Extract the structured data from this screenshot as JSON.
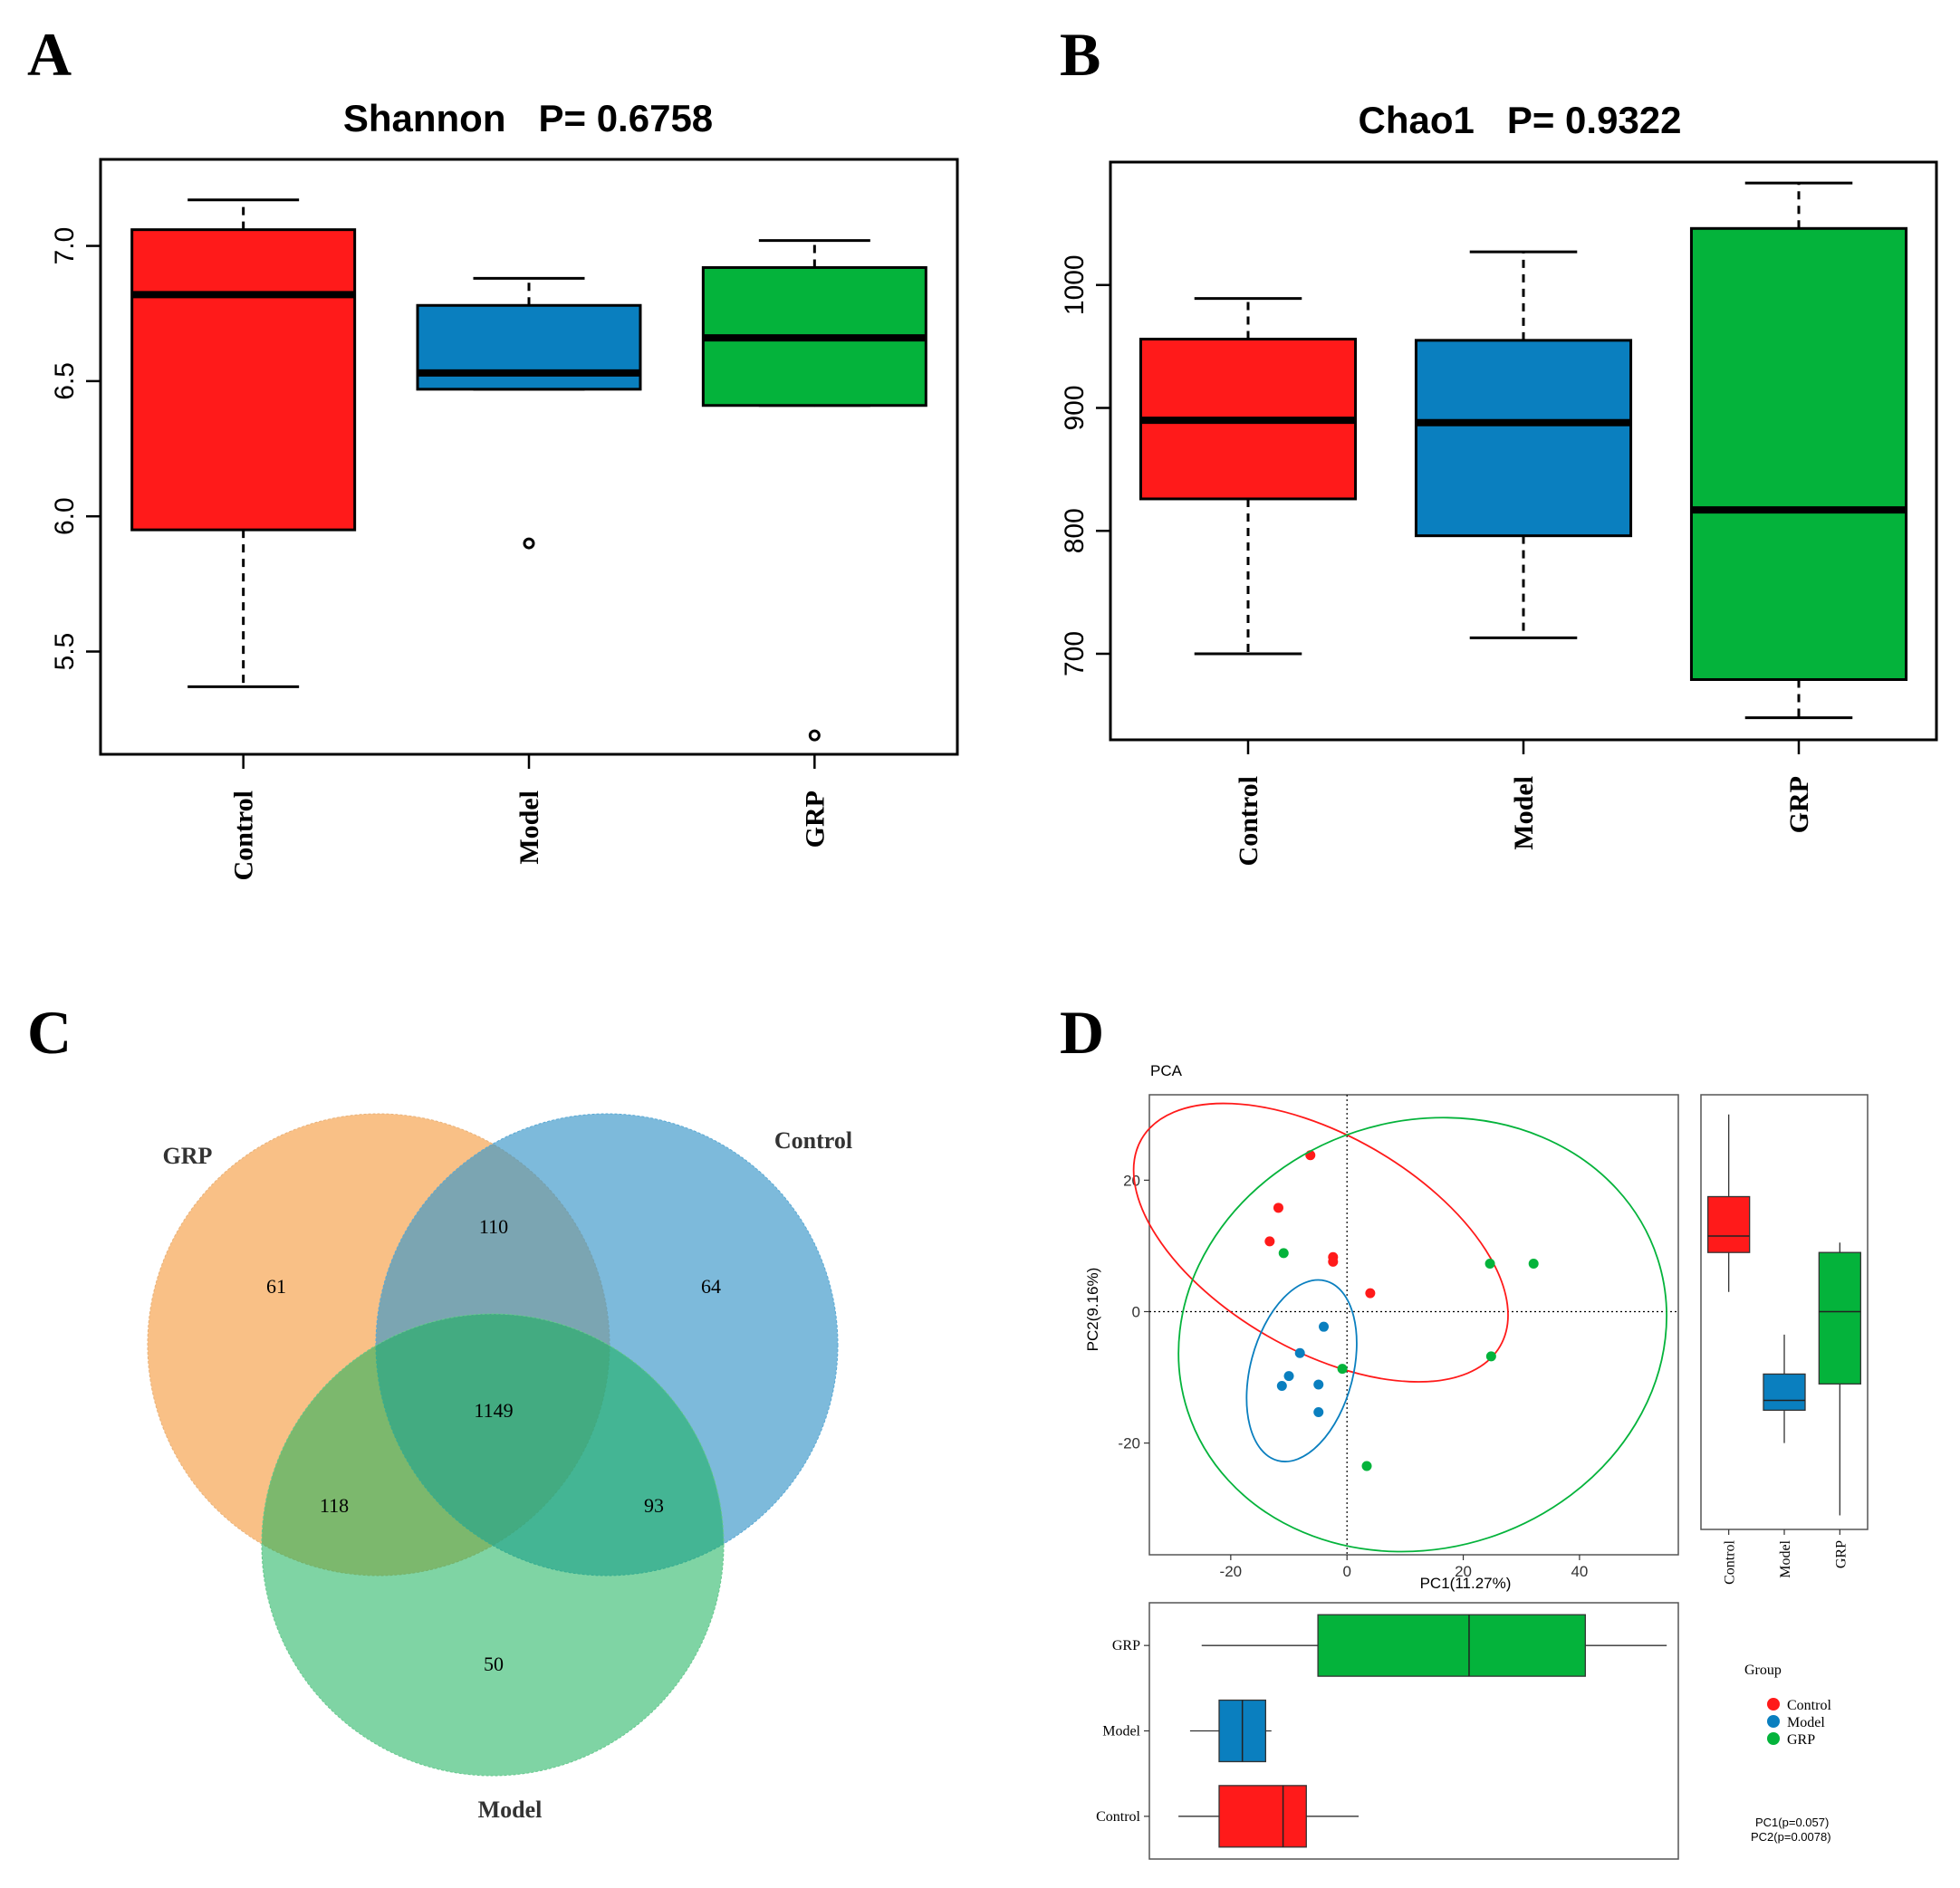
{
  "colors": {
    "control": "#ff1a1a",
    "model": "#0a7fbf",
    "grp": "#04b33b",
    "venn_grp": "#f7a857",
    "venn_control": "#4a9fce",
    "venn_model": "#3bbe6a"
  },
  "panels": {
    "a": "A",
    "b": "B",
    "c": "C",
    "d": "D"
  },
  "chart_data": [
    {
      "id": "shannon",
      "type": "boxplot",
      "title_metric": "Shannon",
      "title_p": "P= 0.6758",
      "categories": [
        "Control",
        "Model",
        "GRP"
      ],
      "ylim": [
        5.12,
        7.32
      ],
      "yticks": [
        "5.5",
        "6.0",
        "6.5",
        "7.0"
      ],
      "ytick_values": [
        5.5,
        6.0,
        6.5,
        7.0
      ],
      "boxes": [
        {
          "name": "Control",
          "min": 5.37,
          "q1": 5.95,
          "median": 6.82,
          "q3": 7.06,
          "max": 7.17,
          "outliers": []
        },
        {
          "name": "Model",
          "min": 6.47,
          "q1": 6.47,
          "median": 6.53,
          "q3": 6.78,
          "max": 6.88,
          "outliers": [
            5.9
          ]
        },
        {
          "name": "GRP",
          "min": 6.41,
          "q1": 6.41,
          "median": 6.66,
          "q3": 6.92,
          "max": 7.02,
          "outliers": [
            5.19
          ]
        }
      ]
    },
    {
      "id": "chao1",
      "type": "boxplot",
      "title_metric": "Chao1",
      "title_p": "P= 0.9322",
      "categories": [
        "Control",
        "Model",
        "GRP"
      ],
      "ylim": [
        630,
        1100
      ],
      "yticks": [
        "700",
        "800",
        "900",
        "1000"
      ],
      "ytick_values": [
        700,
        800,
        900,
        1000
      ],
      "boxes": [
        {
          "name": "Control",
          "min": 700,
          "q1": 826,
          "median": 890,
          "q3": 956,
          "max": 989,
          "outliers": []
        },
        {
          "name": "Model",
          "min": 713,
          "q1": 796,
          "median": 888,
          "q3": 955,
          "max": 1027,
          "outliers": []
        },
        {
          "name": "GRP",
          "min": 648,
          "q1": 679,
          "median": 817,
          "q3": 1046,
          "max": 1083,
          "outliers": []
        }
      ]
    },
    {
      "id": "venn",
      "type": "venn",
      "sets": [
        "GRP",
        "Control",
        "Model"
      ],
      "regions": {
        "grp_only": "61",
        "control_only": "64",
        "model_only": "50",
        "grp_control": "110",
        "grp_model": "118",
        "control_model": "93",
        "all": "1149"
      }
    },
    {
      "id": "pca",
      "type": "scatter",
      "title": "PCA",
      "xlabel": "PC1(11.27%)",
      "ylabel": "PC2(9.16%)",
      "xlim": [
        -34,
        57
      ],
      "ylim": [
        -37,
        33
      ],
      "xticks": [
        "-20",
        "0",
        "20",
        "40"
      ],
      "xtick_values": [
        -20,
        0,
        20,
        40
      ],
      "yticks": [
        "-20",
        "0",
        "20"
      ],
      "ytick_values": [
        -20,
        0,
        20
      ],
      "series": [
        {
          "name": "Control",
          "points": [
            [
              -6.3,
              23.8
            ],
            [
              -11.8,
              15.8
            ],
            [
              -13.3,
              10.7
            ],
            [
              -2.4,
              8.3
            ],
            [
              -2.4,
              7.6
            ],
            [
              4.0,
              2.8
            ]
          ],
          "ellipse": {
            "cx": -4.5,
            "cy": 10.5,
            "rx": 18.5,
            "ry": 31.5,
            "angle": -60
          }
        },
        {
          "name": "Model",
          "points": [
            [
              -4.0,
              -2.3
            ],
            [
              -8.1,
              -6.3
            ],
            [
              -10.0,
              -9.8
            ],
            [
              -11.2,
              -11.3
            ],
            [
              -4.9,
              -11.1
            ],
            [
              -4.9,
              -15.3
            ]
          ],
          "ellipse": {
            "cx": -7.8,
            "cy": -9.0,
            "rx": 16.0,
            "ry": 7.8,
            "angle": -75
          }
        },
        {
          "name": "GRP",
          "points": [
            [
              -10.9,
              8.9
            ],
            [
              24.6,
              7.3
            ],
            [
              32.1,
              7.3
            ],
            [
              24.8,
              -6.8
            ],
            [
              -0.8,
              -8.7
            ],
            [
              3.4,
              -23.5
            ]
          ],
          "ellipse": {
            "cx": 13.0,
            "cy": -3.5,
            "rx": 42.5,
            "ry": 32.5,
            "angle": -18
          }
        }
      ],
      "side_box": {
        "categories": [
          "Control",
          "Model",
          "GRP"
        ],
        "pc2": [
          {
            "name": "Control",
            "min": 3,
            "q1": 9,
            "median": 11.5,
            "q3": 17.5,
            "max": 30
          },
          {
            "name": "Model",
            "min": -20,
            "q1": -15,
            "median": -13.5,
            "q3": -9.5,
            "max": -3.5
          },
          {
            "name": "GRP",
            "min": -31,
            "q1": -11,
            "median": 0,
            "q3": 9,
            "max": 10.5
          }
        ],
        "pc1": [
          {
            "name": "GRP",
            "min": -25,
            "q1": -5,
            "median": 21,
            "q3": 41,
            "max": 55
          },
          {
            "name": "Model",
            "min": -27,
            "q1": -22,
            "median": -18,
            "q3": -14,
            "max": -13
          },
          {
            "name": "Control",
            "min": -29,
            "q1": -22,
            "median": -11,
            "q3": -7,
            "max": 2
          }
        ]
      },
      "legend_title": "Group",
      "legend_items": [
        "Control",
        "Model",
        "GRP"
      ],
      "pvals": [
        "PC1(p=0.057)",
        "PC2(p=0.0078)"
      ]
    }
  ]
}
